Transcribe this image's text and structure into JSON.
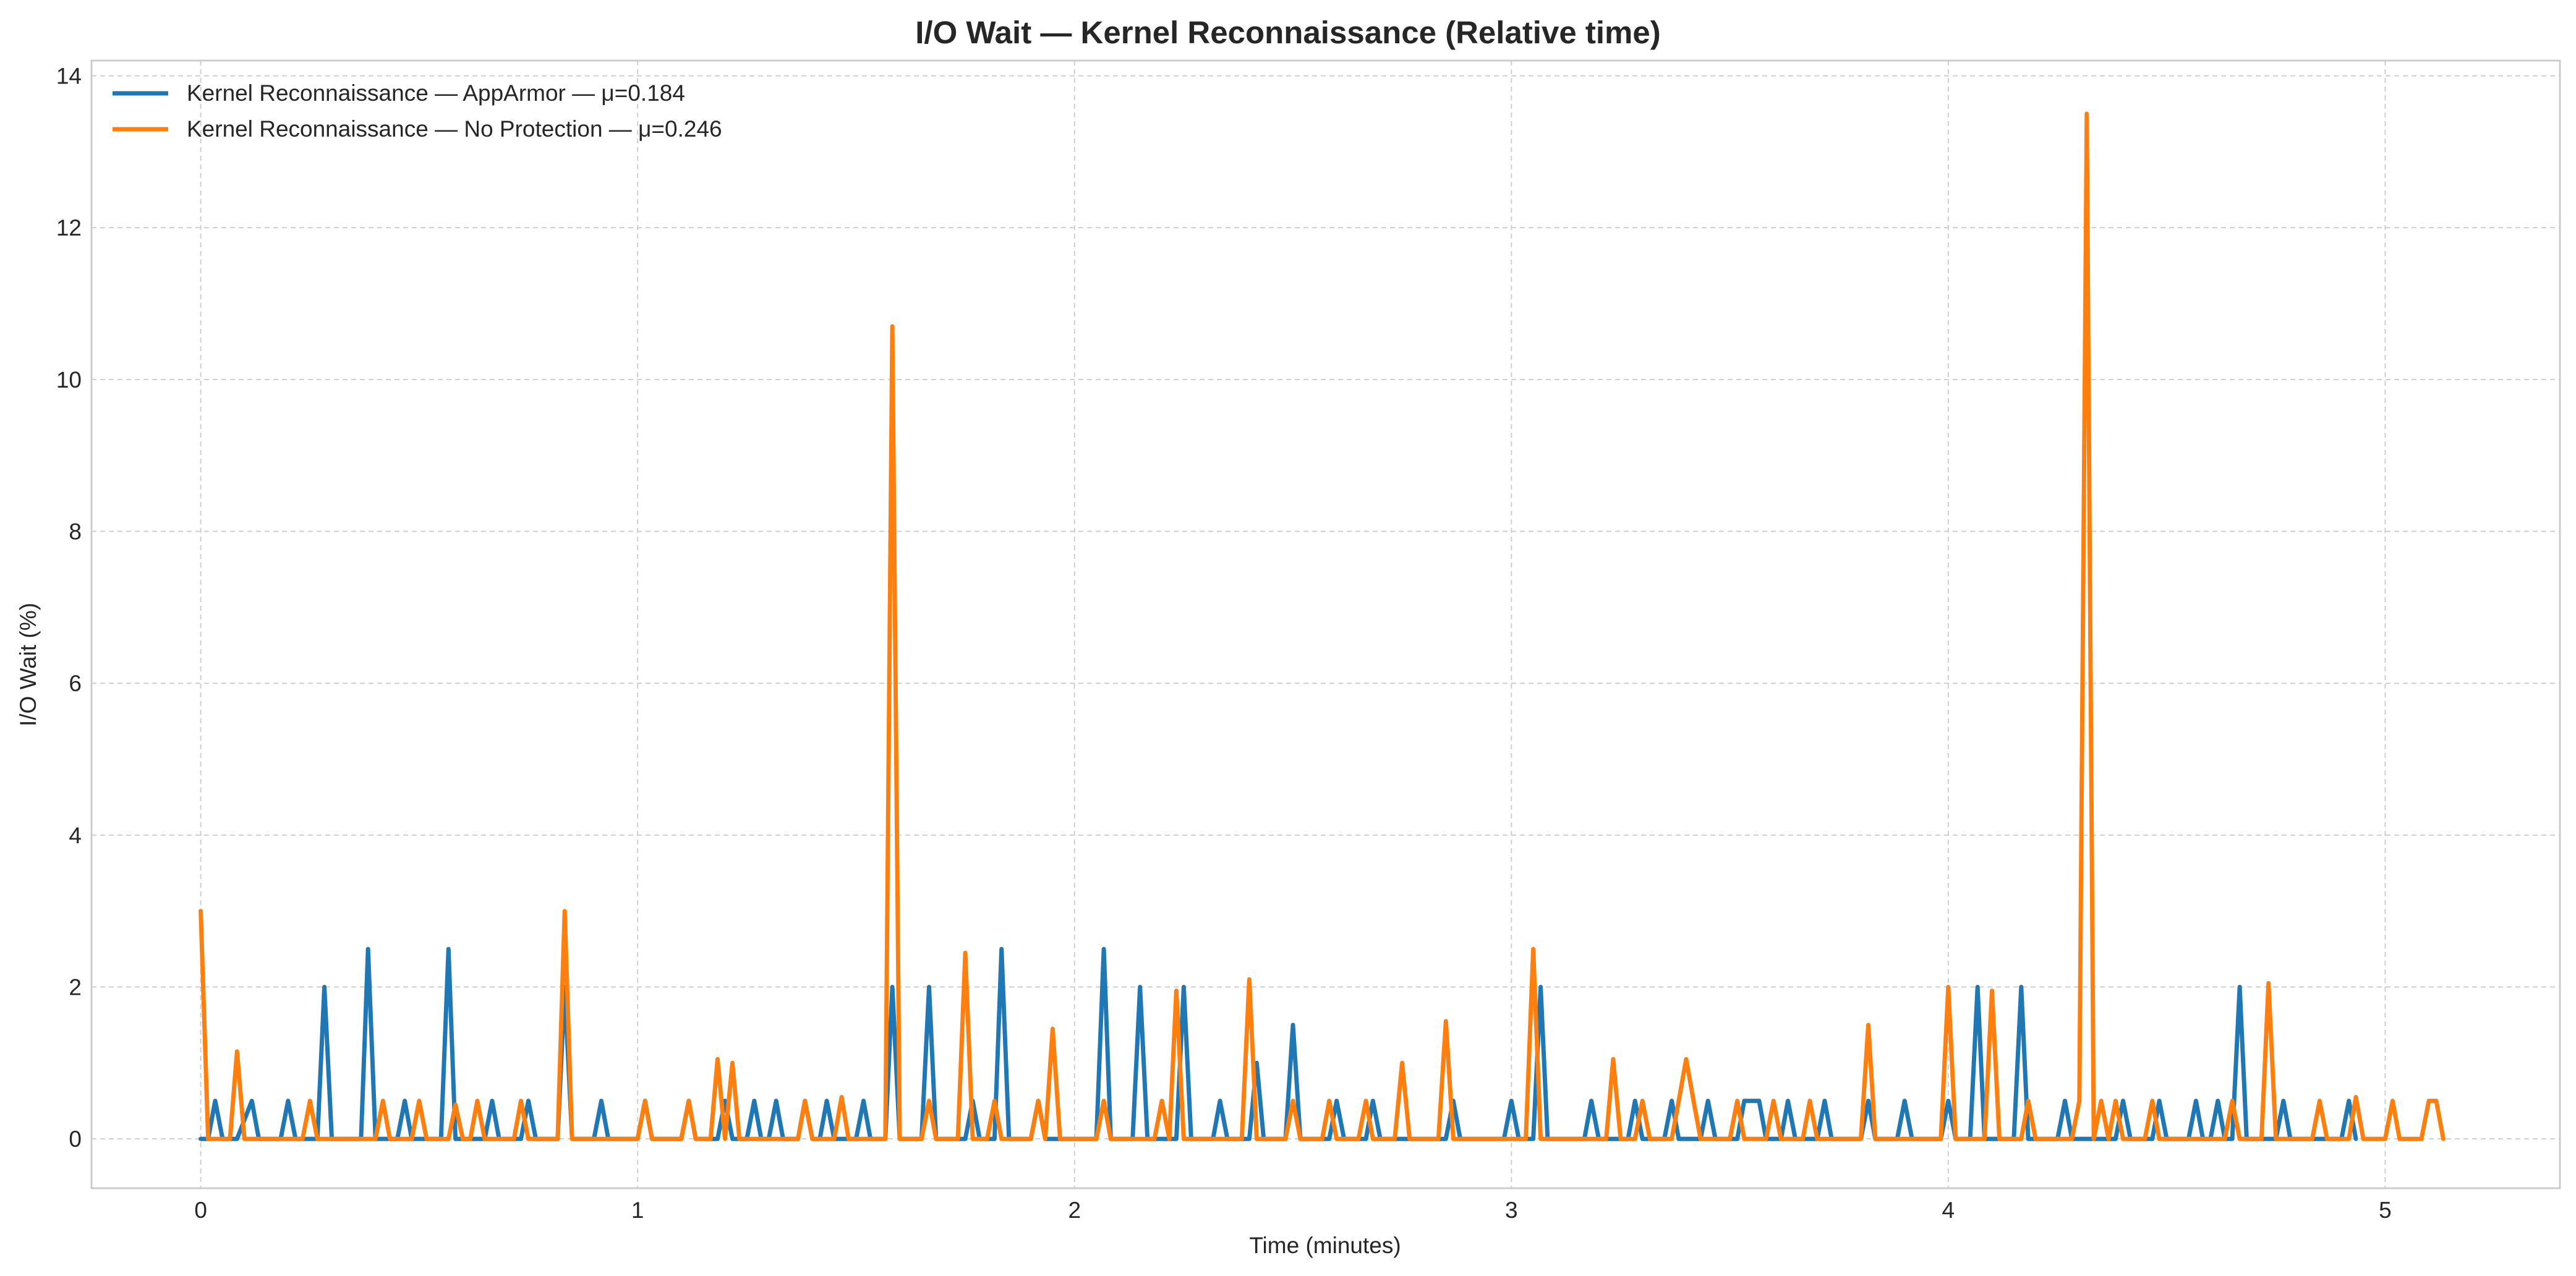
{
  "chart_data": {
    "type": "line",
    "title": "I/O Wait — Kernel Reconnaissance (Relative time)",
    "xlabel": "Time (minutes)",
    "ylabel": "I/O Wait (%)",
    "xlim": [
      -0.25,
      5.4
    ],
    "ylim": [
      -0.65,
      14.2
    ],
    "xticks": [
      0,
      1,
      2,
      3,
      4,
      5
    ],
    "yticks": [
      0,
      2,
      4,
      6,
      8,
      10,
      12,
      14
    ],
    "grid": true,
    "legend_position": "top-left",
    "series": [
      {
        "name": "Kernel Reconnaissance — AppArmor — μ=0.184",
        "color": "#1f77b4",
        "points": [
          [
            0.0,
            0
          ],
          [
            0.017,
            0
          ],
          [
            0.033,
            0.5
          ],
          [
            0.05,
            0
          ],
          [
            0.083,
            0
          ],
          [
            0.117,
            0.5
          ],
          [
            0.133,
            0
          ],
          [
            0.183,
            0
          ],
          [
            0.2,
            0.5
          ],
          [
            0.217,
            0
          ],
          [
            0.267,
            0
          ],
          [
            0.283,
            2.0
          ],
          [
            0.3,
            0
          ],
          [
            0.367,
            0
          ],
          [
            0.383,
            2.5
          ],
          [
            0.4,
            0
          ],
          [
            0.45,
            0
          ],
          [
            0.467,
            0.5
          ],
          [
            0.483,
            0
          ],
          [
            0.55,
            0
          ],
          [
            0.567,
            2.5
          ],
          [
            0.583,
            0
          ],
          [
            0.65,
            0
          ],
          [
            0.667,
            0.5
          ],
          [
            0.683,
            0
          ],
          [
            0.733,
            0
          ],
          [
            0.75,
            0.5
          ],
          [
            0.767,
            0
          ],
          [
            0.817,
            0
          ],
          [
            0.833,
            2.0
          ],
          [
            0.85,
            0
          ],
          [
            0.9,
            0
          ],
          [
            0.917,
            0.5
          ],
          [
            0.933,
            0
          ],
          [
            1.0,
            0
          ],
          [
            1.017,
            0.5
          ],
          [
            1.033,
            0
          ],
          [
            1.1,
            0
          ],
          [
            1.117,
            0.5
          ],
          [
            1.133,
            0
          ],
          [
            1.183,
            0
          ],
          [
            1.2,
            0.5
          ],
          [
            1.217,
            0
          ],
          [
            1.25,
            0
          ],
          [
            1.267,
            0.5
          ],
          [
            1.283,
            0
          ],
          [
            1.3,
            0
          ],
          [
            1.317,
            0.5
          ],
          [
            1.333,
            0
          ],
          [
            1.367,
            0
          ],
          [
            1.383,
            0.5
          ],
          [
            1.4,
            0
          ],
          [
            1.417,
            0
          ],
          [
            1.433,
            0.5
          ],
          [
            1.45,
            0
          ],
          [
            1.5,
            0
          ],
          [
            1.517,
            0.5
          ],
          [
            1.533,
            0
          ],
          [
            1.567,
            0
          ],
          [
            1.583,
            2.0
          ],
          [
            1.6,
            0
          ],
          [
            1.65,
            0
          ],
          [
            1.667,
            2.0
          ],
          [
            1.683,
            0
          ],
          [
            1.75,
            0
          ],
          [
            1.767,
            0.5
          ],
          [
            1.783,
            0
          ],
          [
            1.817,
            0
          ],
          [
            1.833,
            2.5
          ],
          [
            1.85,
            0
          ],
          [
            1.9,
            0
          ],
          [
            1.917,
            0.5
          ],
          [
            1.933,
            0
          ],
          [
            2.05,
            0
          ],
          [
            2.067,
            2.5
          ],
          [
            2.083,
            0
          ],
          [
            2.133,
            0
          ],
          [
            2.15,
            2.0
          ],
          [
            2.167,
            0
          ],
          [
            2.233,
            0
          ],
          [
            2.25,
            2.0
          ],
          [
            2.267,
            0
          ],
          [
            2.317,
            0
          ],
          [
            2.333,
            0.5
          ],
          [
            2.35,
            0
          ],
          [
            2.4,
            0
          ],
          [
            2.417,
            1.0
          ],
          [
            2.433,
            0
          ],
          [
            2.483,
            0
          ],
          [
            2.5,
            1.5
          ],
          [
            2.517,
            0
          ],
          [
            2.583,
            0
          ],
          [
            2.6,
            0.5
          ],
          [
            2.617,
            0
          ],
          [
            2.667,
            0
          ],
          [
            2.683,
            0.5
          ],
          [
            2.7,
            0
          ],
          [
            2.85,
            0
          ],
          [
            2.867,
            0.5
          ],
          [
            2.883,
            0
          ],
          [
            2.983,
            0
          ],
          [
            3.0,
            0.5
          ],
          [
            3.017,
            0
          ],
          [
            3.05,
            0
          ],
          [
            3.067,
            2.0
          ],
          [
            3.083,
            0
          ],
          [
            3.167,
            0
          ],
          [
            3.183,
            0.5
          ],
          [
            3.2,
            0
          ],
          [
            3.267,
            0
          ],
          [
            3.283,
            0.5
          ],
          [
            3.3,
            0
          ],
          [
            3.35,
            0
          ],
          [
            3.367,
            0.5
          ],
          [
            3.383,
            0
          ],
          [
            3.433,
            0
          ],
          [
            3.45,
            0.5
          ],
          [
            3.467,
            0
          ],
          [
            3.517,
            0
          ],
          [
            3.533,
            0.5
          ],
          [
            3.567,
            0.5
          ],
          [
            3.583,
            0
          ],
          [
            3.617,
            0
          ],
          [
            3.633,
            0.5
          ],
          [
            3.65,
            0
          ],
          [
            3.7,
            0
          ],
          [
            3.717,
            0.5
          ],
          [
            3.733,
            0
          ],
          [
            3.8,
            0
          ],
          [
            3.817,
            0.5
          ],
          [
            3.833,
            0
          ],
          [
            3.883,
            0
          ],
          [
            3.9,
            0.5
          ],
          [
            3.917,
            0
          ],
          [
            3.983,
            0
          ],
          [
            4.0,
            0.5
          ],
          [
            4.017,
            0
          ],
          [
            4.05,
            0
          ],
          [
            4.067,
            2.0
          ],
          [
            4.083,
            0
          ],
          [
            4.15,
            0
          ],
          [
            4.167,
            2.0
          ],
          [
            4.183,
            0
          ],
          [
            4.25,
            0
          ],
          [
            4.267,
            0.5
          ],
          [
            4.283,
            0
          ],
          [
            4.383,
            0
          ],
          [
            4.4,
            0.5
          ],
          [
            4.417,
            0
          ],
          [
            4.467,
            0
          ],
          [
            4.483,
            0.5
          ],
          [
            4.5,
            0
          ],
          [
            4.55,
            0
          ],
          [
            4.567,
            0.5
          ],
          [
            4.583,
            0
          ],
          [
            4.6,
            0
          ],
          [
            4.617,
            0.5
          ],
          [
            4.633,
            0
          ],
          [
            4.65,
            0
          ],
          [
            4.667,
            2.0
          ],
          [
            4.683,
            0
          ],
          [
            4.75,
            0
          ],
          [
            4.767,
            0.5
          ],
          [
            4.783,
            0
          ],
          [
            4.9,
            0
          ],
          [
            4.917,
            0.5
          ],
          [
            4.933,
            0
          ]
        ]
      },
      {
        "name": "Kernel Reconnaissance — No Protection — μ=0.246",
        "color": "#ff7f0e",
        "points": [
          [
            0.0,
            3.0
          ],
          [
            0.017,
            0
          ],
          [
            0.067,
            0
          ],
          [
            0.083,
            1.15
          ],
          [
            0.1,
            0
          ],
          [
            0.233,
            0
          ],
          [
            0.25,
            0.5
          ],
          [
            0.267,
            0
          ],
          [
            0.4,
            0
          ],
          [
            0.417,
            0.5
          ],
          [
            0.433,
            0
          ],
          [
            0.483,
            0
          ],
          [
            0.5,
            0.5
          ],
          [
            0.517,
            0
          ],
          [
            0.567,
            0
          ],
          [
            0.583,
            0.45
          ],
          [
            0.6,
            0
          ],
          [
            0.617,
            0
          ],
          [
            0.633,
            0.5
          ],
          [
            0.65,
            0
          ],
          [
            0.717,
            0
          ],
          [
            0.733,
            0.5
          ],
          [
            0.75,
            0
          ],
          [
            0.817,
            0
          ],
          [
            0.833,
            3.0
          ],
          [
            0.85,
            0
          ],
          [
            1.0,
            0
          ],
          [
            1.017,
            0.5
          ],
          [
            1.033,
            0
          ],
          [
            1.1,
            0
          ],
          [
            1.117,
            0.5
          ],
          [
            1.133,
            0
          ],
          [
            1.167,
            0
          ],
          [
            1.183,
            1.05
          ],
          [
            1.2,
            0
          ],
          [
            1.217,
            1.0
          ],
          [
            1.233,
            0
          ],
          [
            1.367,
            0
          ],
          [
            1.383,
            0.5
          ],
          [
            1.4,
            0
          ],
          [
            1.45,
            0
          ],
          [
            1.467,
            0.55
          ],
          [
            1.483,
            0
          ],
          [
            1.567,
            0
          ],
          [
            1.583,
            10.7
          ],
          [
            1.6,
            0
          ],
          [
            1.65,
            0
          ],
          [
            1.667,
            0.5
          ],
          [
            1.683,
            0
          ],
          [
            1.733,
            0
          ],
          [
            1.75,
            2.45
          ],
          [
            1.767,
            0
          ],
          [
            1.8,
            0
          ],
          [
            1.817,
            0.5
          ],
          [
            1.833,
            0
          ],
          [
            1.9,
            0
          ],
          [
            1.917,
            0.5
          ],
          [
            1.933,
            0
          ],
          [
            1.95,
            1.45
          ],
          [
            1.967,
            0
          ],
          [
            2.05,
            0
          ],
          [
            2.067,
            0.5
          ],
          [
            2.083,
            0
          ],
          [
            2.183,
            0
          ],
          [
            2.2,
            0.5
          ],
          [
            2.217,
            0
          ],
          [
            2.233,
            1.95
          ],
          [
            2.25,
            0
          ],
          [
            2.383,
            0
          ],
          [
            2.4,
            2.1
          ],
          [
            2.417,
            0
          ],
          [
            2.483,
            0
          ],
          [
            2.5,
            0.5
          ],
          [
            2.517,
            0
          ],
          [
            2.567,
            0
          ],
          [
            2.583,
            0.5
          ],
          [
            2.6,
            0
          ],
          [
            2.65,
            0
          ],
          [
            2.667,
            0.5
          ],
          [
            2.683,
            0
          ],
          [
            2.733,
            0
          ],
          [
            2.75,
            1.0
          ],
          [
            2.767,
            0
          ],
          [
            2.833,
            0
          ],
          [
            2.85,
            1.55
          ],
          [
            2.867,
            0
          ],
          [
            3.033,
            0
          ],
          [
            3.05,
            2.5
          ],
          [
            3.067,
            0
          ],
          [
            3.217,
            0
          ],
          [
            3.233,
            1.05
          ],
          [
            3.25,
            0
          ],
          [
            3.283,
            0
          ],
          [
            3.3,
            0.5
          ],
          [
            3.317,
            0
          ],
          [
            3.367,
            0
          ],
          [
            3.383,
            0.5
          ],
          [
            3.4,
            1.05
          ],
          [
            3.417,
            0.5
          ],
          [
            3.433,
            0
          ],
          [
            3.5,
            0
          ],
          [
            3.517,
            0.5
          ],
          [
            3.533,
            0
          ],
          [
            3.583,
            0
          ],
          [
            3.6,
            0.5
          ],
          [
            3.617,
            0
          ],
          [
            3.667,
            0
          ],
          [
            3.683,
            0.5
          ],
          [
            3.7,
            0
          ],
          [
            3.8,
            0
          ],
          [
            3.817,
            1.5
          ],
          [
            3.833,
            0
          ],
          [
            3.983,
            0
          ],
          [
            4.0,
            2.0
          ],
          [
            4.017,
            0
          ],
          [
            4.083,
            0
          ],
          [
            4.1,
            1.95
          ],
          [
            4.117,
            0
          ],
          [
            4.167,
            0
          ],
          [
            4.183,
            0.5
          ],
          [
            4.2,
            0
          ],
          [
            4.283,
            0
          ],
          [
            4.3,
            0.5
          ],
          [
            4.317,
            13.5
          ],
          [
            4.333,
            0
          ],
          [
            4.35,
            0.5
          ],
          [
            4.367,
            0
          ],
          [
            4.383,
            0.5
          ],
          [
            4.4,
            0
          ],
          [
            4.45,
            0
          ],
          [
            4.467,
            0.5
          ],
          [
            4.483,
            0
          ],
          [
            4.633,
            0
          ],
          [
            4.65,
            0.5
          ],
          [
            4.667,
            0
          ],
          [
            4.717,
            0
          ],
          [
            4.733,
            2.05
          ],
          [
            4.75,
            0
          ],
          [
            4.833,
            0
          ],
          [
            4.85,
            0.5
          ],
          [
            4.867,
            0
          ],
          [
            4.917,
            0
          ],
          [
            4.933,
            0.55
          ],
          [
            4.95,
            0
          ],
          [
            5.0,
            0
          ],
          [
            5.017,
            0.5
          ],
          [
            5.033,
            0
          ],
          [
            5.083,
            0
          ],
          [
            5.1,
            0.5
          ],
          [
            5.117,
            0.5
          ],
          [
            5.133,
            0
          ]
        ]
      }
    ]
  }
}
